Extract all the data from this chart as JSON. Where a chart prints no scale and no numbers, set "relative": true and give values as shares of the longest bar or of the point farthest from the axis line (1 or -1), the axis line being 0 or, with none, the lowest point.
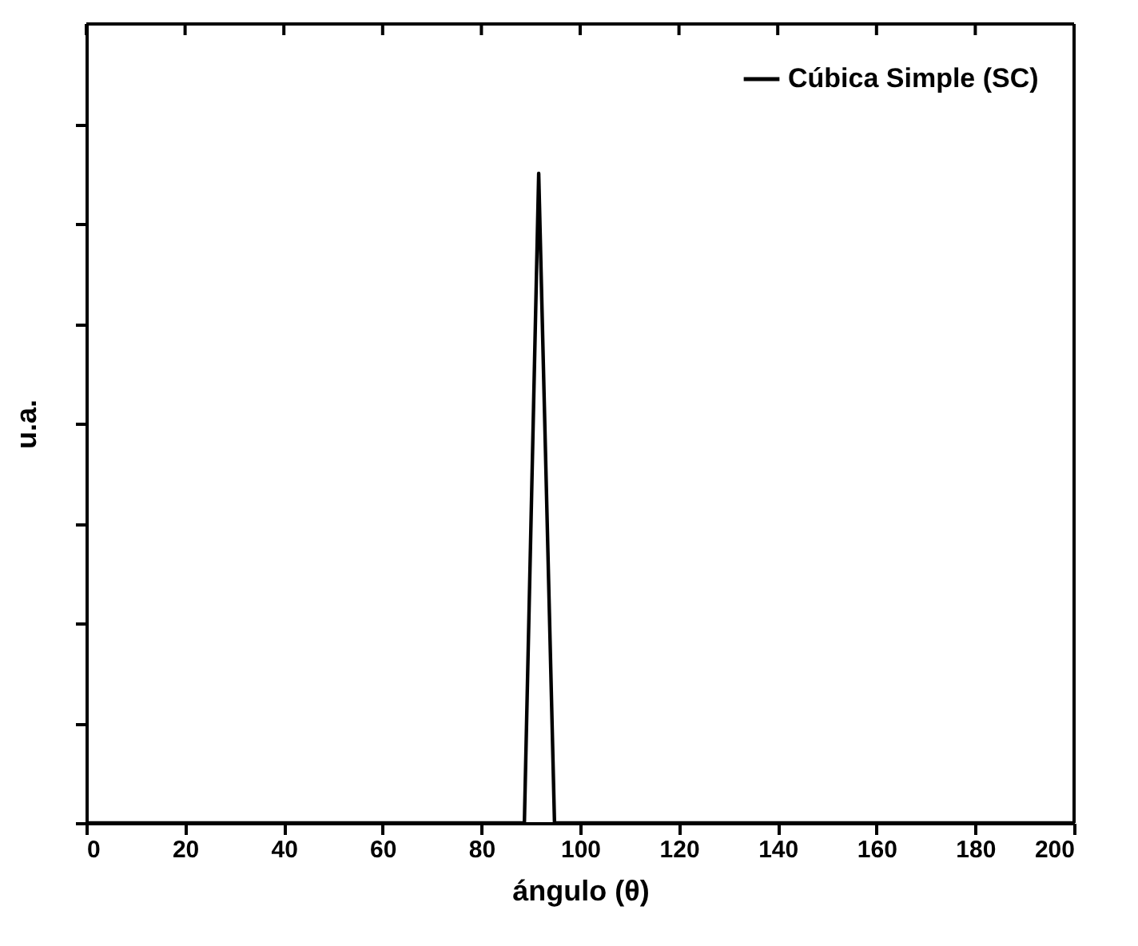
{
  "chart_data": {
    "type": "line",
    "xlabel": "ángulo (θ)",
    "ylabel": "u.a.",
    "relative": true,
    "x": [
      0,
      88.7,
      91.6,
      94.8,
      200
    ],
    "series": [
      {
        "name": "Cúbica Simple (SC)",
        "color": "#000000",
        "values": [
          0,
          0,
          1,
          0,
          0
        ]
      }
    ],
    "xlim": [
      0,
      200
    ],
    "xticks": [
      0,
      20,
      40,
      60,
      80,
      100,
      120,
      140,
      160,
      180,
      200
    ],
    "legend": "top right",
    "grid": false,
    "tick_labels": "x",
    "marker": "none",
    "line_style": "solid"
  }
}
